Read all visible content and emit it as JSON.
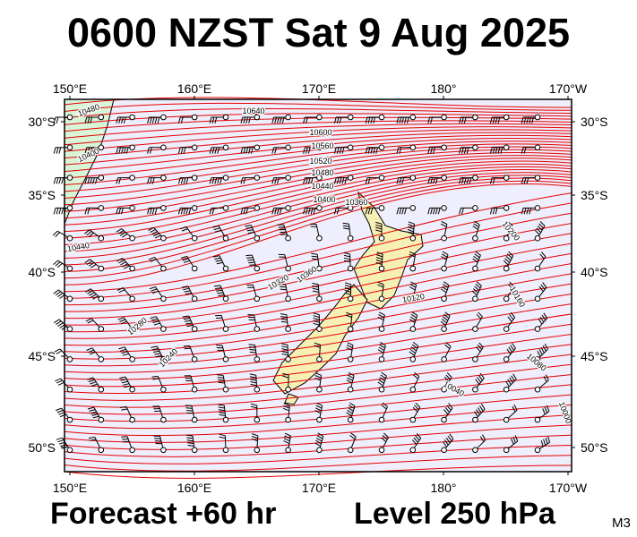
{
  "title": "0600 NZST Sat 9 Aug 2025",
  "footer": {
    "forecast": "Forecast +60 hr",
    "level": "Level 250 hPa",
    "code": "M3"
  },
  "map": {
    "lon_labels": [
      "150°E",
      "160°E",
      "170°E",
      "180°",
      "170°W"
    ],
    "lat_labels": [
      "30°S",
      "35°S",
      "40°S",
      "45°S",
      "50°S"
    ],
    "contour_labels": [
      "10480",
      "10640",
      "10600",
      "10560",
      "10520",
      "10480",
      "10440",
      "10400",
      "10360",
      "10440",
      "10400",
      "10360",
      "10320",
      "10280",
      "10240",
      "10200",
      "10160",
      "10120",
      "10080",
      "10040",
      "10000"
    ],
    "colors": {
      "land": "#f7f0b5",
      "land_west": "#d8f5d8",
      "sea": "#eeeefc",
      "contour": "#e80000",
      "barb": "#000000"
    }
  }
}
